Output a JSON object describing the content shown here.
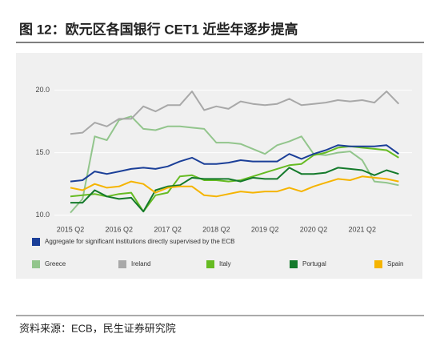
{
  "chart_data": {
    "type": "line",
    "title": "图 12：欧元区各国银行 CET1 近些年逐步提高",
    "source": "资料来源：ECB，民生证券研究院",
    "categories": [
      "2015 Q2",
      null,
      null,
      null,
      "2016 Q2",
      null,
      null,
      null,
      "2017 Q2",
      null,
      null,
      null,
      "2018 Q2",
      null,
      null,
      null,
      "2019 Q2",
      null,
      null,
      null,
      "2020 Q2",
      null,
      null,
      null,
      "2021 Q2",
      null,
      null,
      null
    ],
    "ylim": [
      9.6,
      20.8
    ],
    "yticks": [
      {
        "value": 10,
        "label": "10.0"
      },
      {
        "value": 15,
        "label": "15.0"
      },
      {
        "value": 20,
        "label": "20.0"
      }
    ],
    "grid": true,
    "legend": "bottom",
    "series": [
      {
        "name": "Aggregate for significant institutions directly supervised by the ECB",
        "color": "#1b3f98",
        "values": [
          12.7,
          12.8,
          13.5,
          13.3,
          13.5,
          13.7,
          13.8,
          13.7,
          13.9,
          14.3,
          14.6,
          14.1,
          14.1,
          14.2,
          14.4,
          14.3,
          14.3,
          14.3,
          14.9,
          14.5,
          14.9,
          15.2,
          15.6,
          15.5,
          15.5,
          15.5,
          15.6,
          14.9
        ]
      },
      {
        "name": "Greece",
        "color": "#92c58c",
        "values": [
          10.2,
          11.3,
          16.3,
          16.0,
          17.6,
          17.9,
          16.9,
          16.8,
          17.1,
          17.1,
          17.0,
          16.9,
          15.8,
          15.8,
          15.7,
          15.3,
          14.9,
          15.6,
          15.9,
          16.3,
          14.9,
          14.8,
          15.0,
          15.1,
          14.4,
          12.7,
          12.6,
          12.4
        ]
      },
      {
        "name": "Ireland",
        "color": "#a8a8a8",
        "values": [
          16.5,
          16.6,
          17.4,
          17.1,
          17.7,
          17.7,
          18.7,
          18.3,
          18.8,
          18.8,
          19.9,
          18.4,
          18.7,
          18.5,
          19.1,
          18.9,
          18.8,
          18.9,
          19.3,
          18.8,
          18.9,
          19.0,
          19.2,
          19.1,
          19.2,
          19.0,
          19.9,
          18.9
        ]
      },
      {
        "name": "Italy",
        "color": "#66bb22",
        "values": [
          11.5,
          11.6,
          11.7,
          11.5,
          11.7,
          11.8,
          10.3,
          11.6,
          11.8,
          13.1,
          13.2,
          12.8,
          12.8,
          12.7,
          12.8,
          13.1,
          13.4,
          13.7,
          14.0,
          14.1,
          14.8,
          15.0,
          15.4,
          15.5,
          15.4,
          15.3,
          15.2,
          14.6
        ]
      },
      {
        "name": "Portugal",
        "color": "#147a2b",
        "values": [
          11.0,
          11.0,
          12.0,
          11.5,
          11.3,
          11.4,
          10.3,
          12.0,
          12.3,
          12.4,
          13.0,
          12.9,
          12.9,
          12.9,
          12.7,
          13.0,
          12.9,
          12.9,
          13.8,
          13.3,
          13.3,
          13.4,
          13.8,
          13.7,
          13.6,
          13.2,
          13.6,
          13.3
        ]
      },
      {
        "name": "Spain",
        "color": "#f5b400",
        "values": [
          12.2,
          12.0,
          12.5,
          12.2,
          12.3,
          12.7,
          12.5,
          11.8,
          12.2,
          12.3,
          12.3,
          11.6,
          11.5,
          11.7,
          11.9,
          11.8,
          11.9,
          11.9,
          12.2,
          11.9,
          12.3,
          12.6,
          12.9,
          12.8,
          13.1,
          13.0,
          12.9,
          12.7
        ]
      }
    ]
  }
}
